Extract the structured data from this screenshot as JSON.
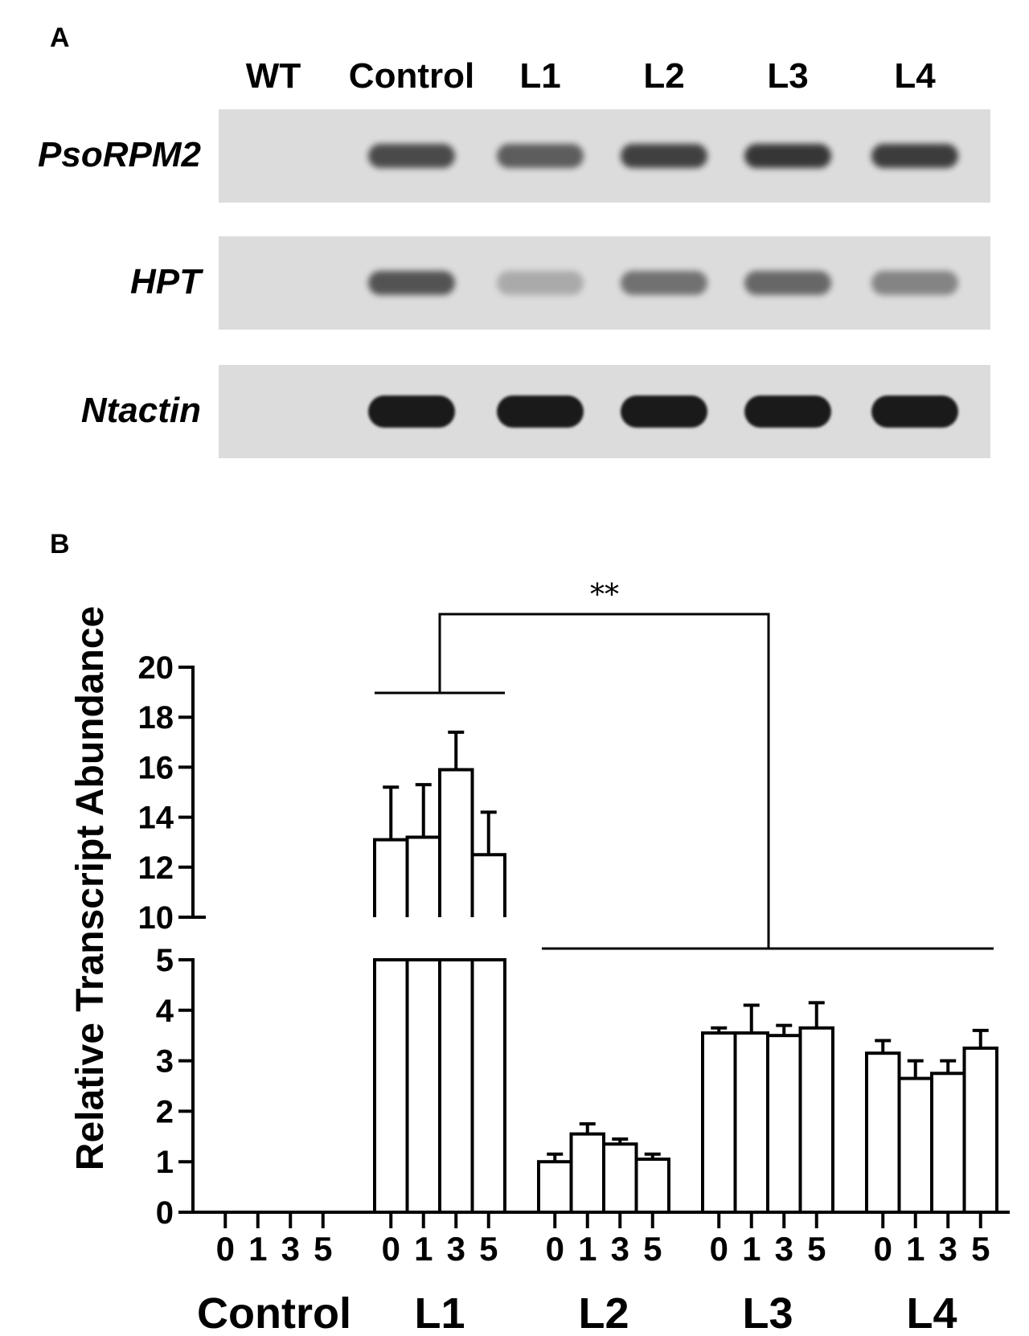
{
  "panel_a": {
    "label": "A",
    "lanes": [
      "WT",
      "Control",
      "L1",
      "L2",
      "L3",
      "L4"
    ],
    "genes": [
      "PsoRPM2",
      "HPT",
      "Ntactin"
    ],
    "band_intensity": {
      "PsoRPM2": [
        0,
        0.75,
        0.65,
        0.8,
        0.85,
        0.82
      ],
      "HPT": [
        0,
        0.7,
        0.25,
        0.55,
        0.6,
        0.45
      ],
      "Ntactin": [
        0,
        1,
        1,
        1,
        1,
        1
      ]
    },
    "colors": {
      "gel": "#dcdcdc",
      "band": "#1a1a1a"
    }
  },
  "panel_b": {
    "label": "B",
    "significance": "**"
  },
  "chart_data": {
    "type": "bar",
    "ylabel": "Relative Transcript Abundance",
    "xlabel": "",
    "y_axis_break": [
      5,
      10
    ],
    "ylim": [
      0,
      20
    ],
    "y_ticks_lower": [
      "0",
      "1",
      "2",
      "3",
      "4",
      "5"
    ],
    "y_ticks_upper": [
      "10",
      "12",
      "14",
      "16",
      "18",
      "20"
    ],
    "groups": [
      "Control",
      "L1",
      "L2",
      "L3",
      "L4"
    ],
    "timepoints": [
      "0",
      "1",
      "3",
      "5"
    ],
    "series": [
      {
        "group": "Control",
        "values": [
          0,
          0,
          0,
          0
        ],
        "errors": [
          0,
          0,
          0,
          0
        ]
      },
      {
        "group": "L1",
        "values": [
          13.1,
          13.2,
          15.9,
          12.5
        ],
        "errors": [
          2.1,
          2.1,
          1.5,
          1.7
        ]
      },
      {
        "group": "L2",
        "values": [
          1.0,
          1.55,
          1.35,
          1.05
        ],
        "errors": [
          0.15,
          0.2,
          0.1,
          0.1
        ]
      },
      {
        "group": "L3",
        "values": [
          3.55,
          3.55,
          3.5,
          3.65
        ],
        "errors": [
          0.1,
          0.55,
          0.2,
          0.5
        ]
      },
      {
        "group": "L4",
        "values": [
          3.15,
          2.65,
          2.75,
          3.25
        ],
        "errors": [
          0.25,
          0.35,
          0.25,
          0.35
        ]
      }
    ],
    "annotation": {
      "text": "**",
      "compares": [
        "L1",
        "L2, L3, L4"
      ]
    },
    "grid": false,
    "legend": "none"
  }
}
